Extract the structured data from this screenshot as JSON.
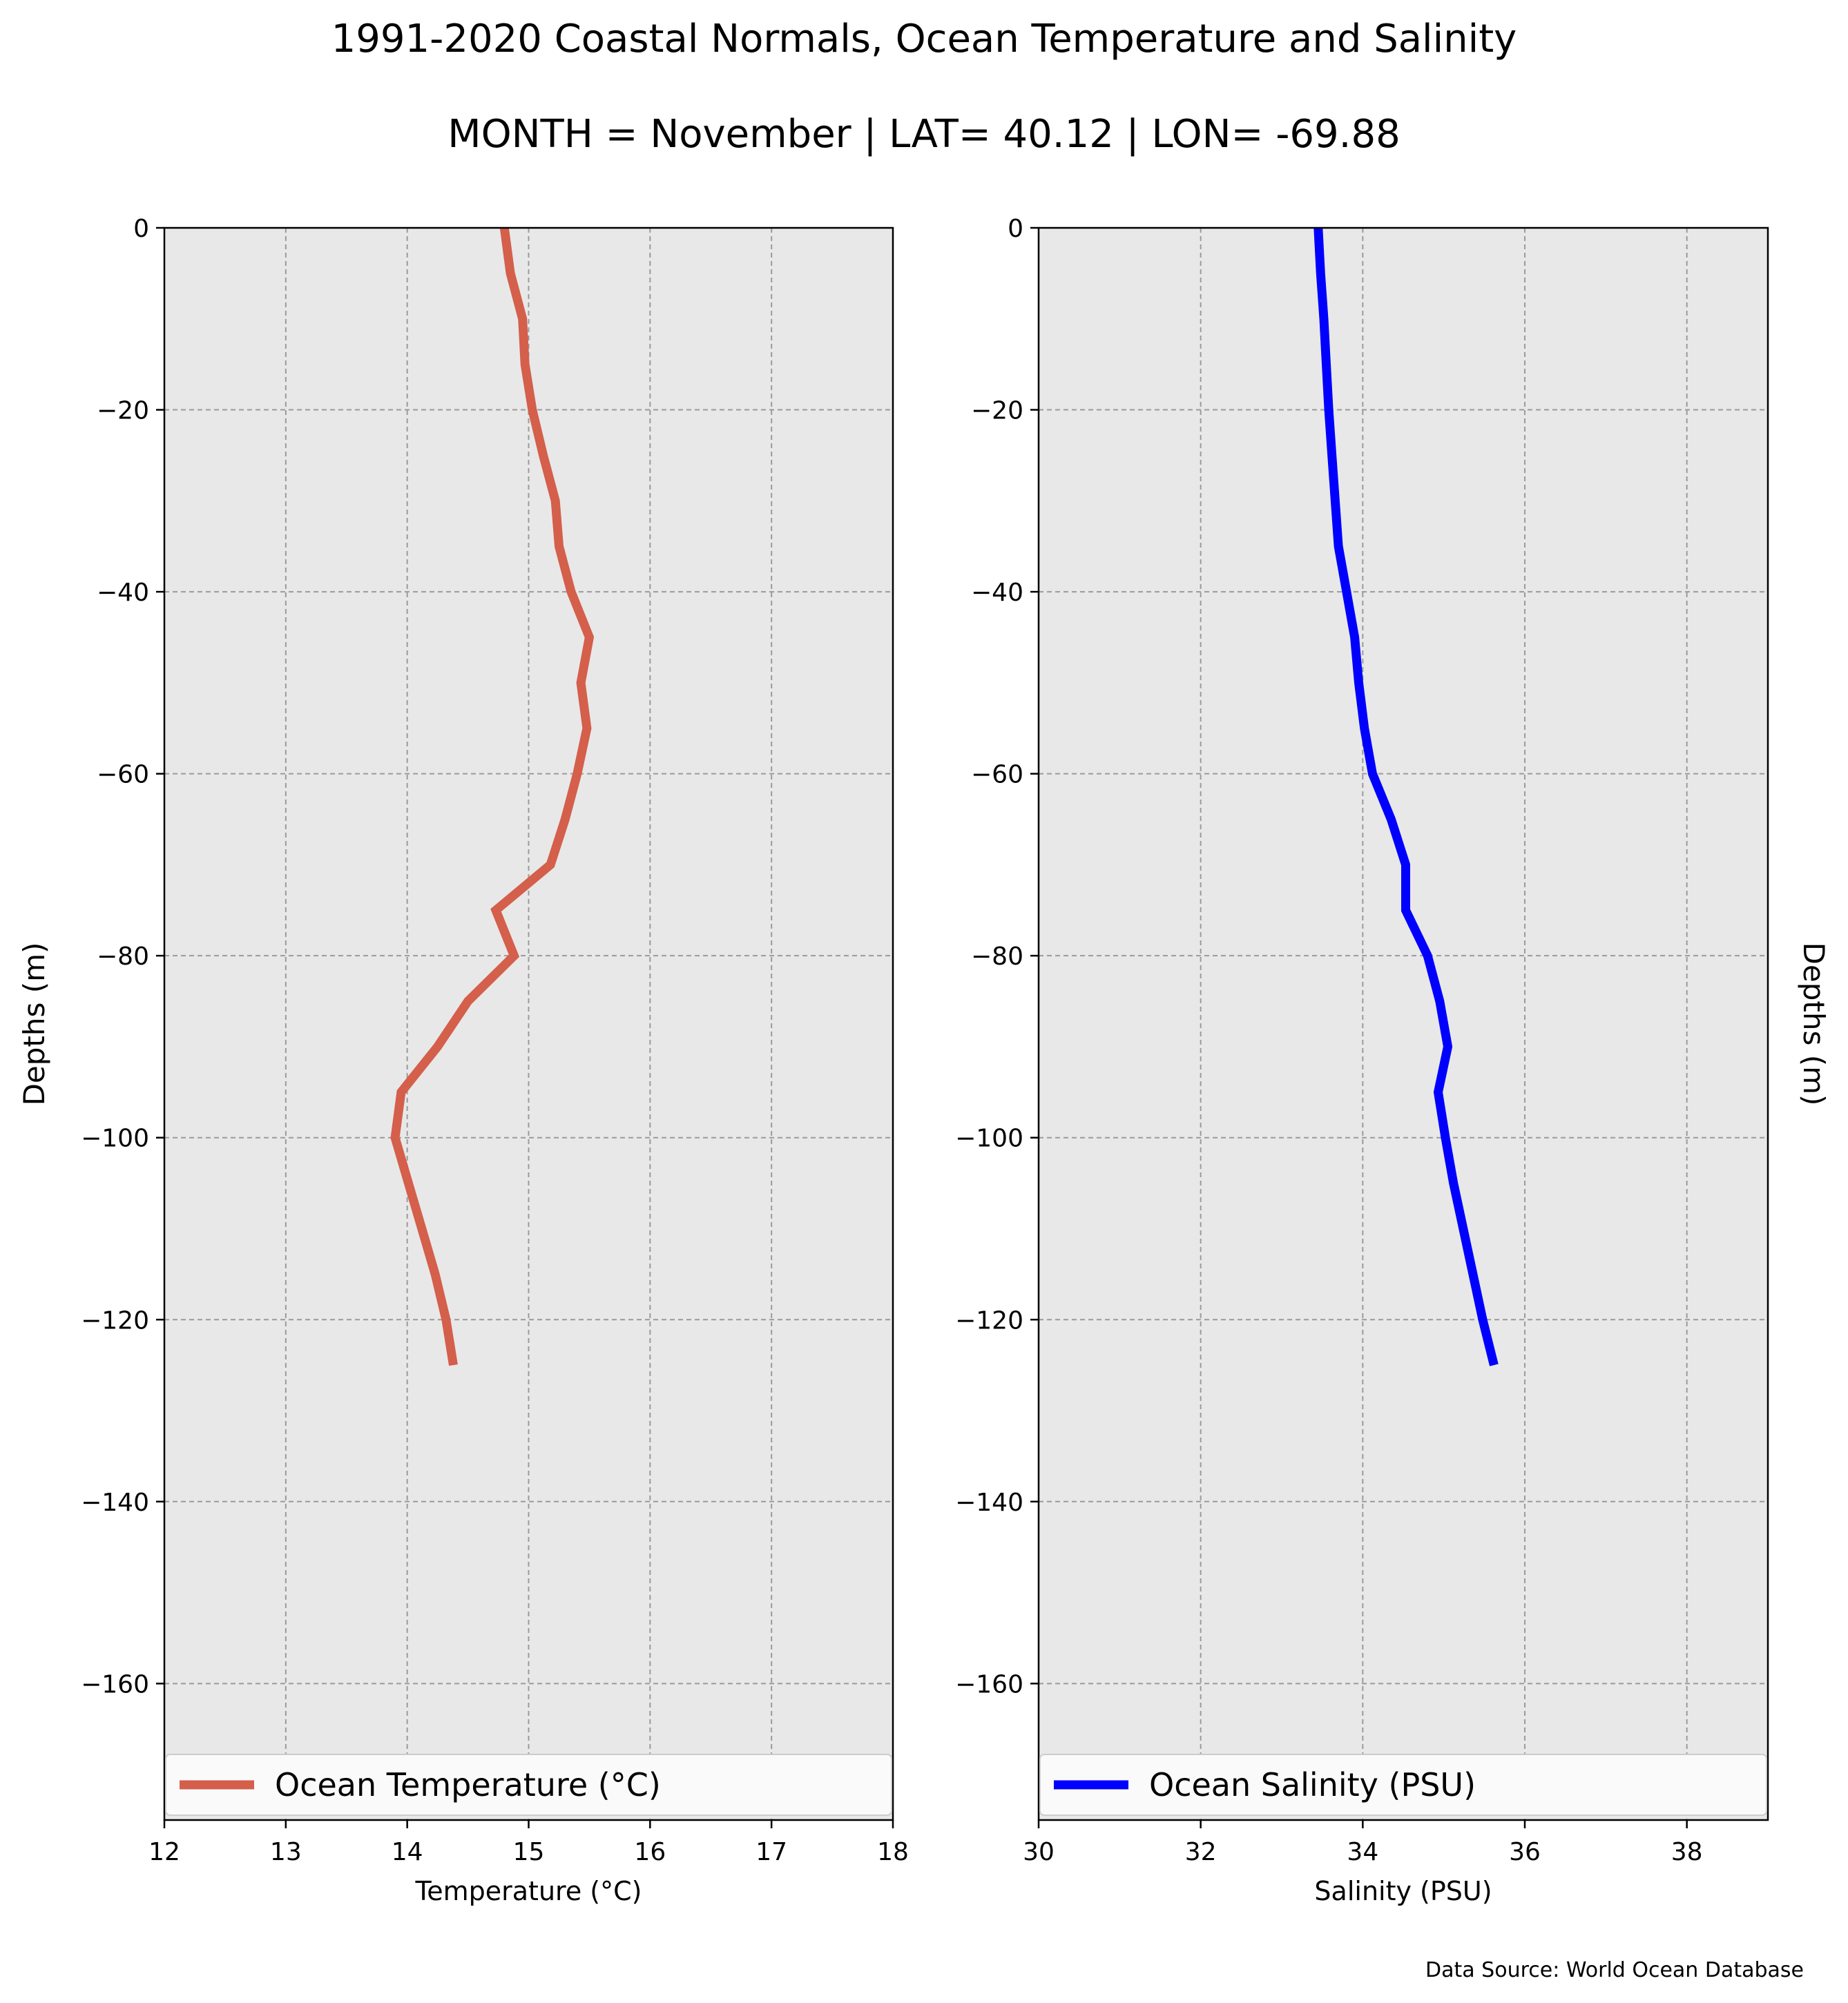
{
  "figure": {
    "title_line1": "1991-2020 Coastal Normals, Ocean Temperature and Salinity",
    "title_line2": "MONTH = November | LAT= 40.12 | LON= -69.88",
    "source": "Data Source: World Ocean Database"
  },
  "chart_data": [
    {
      "type": "line",
      "name": "temperature-profile",
      "xlabel": "Temperature (°C)",
      "ylabel": "Depths (m)",
      "ylabel_side": "left",
      "xlim": [
        12,
        18
      ],
      "ylim": [
        -175,
        0
      ],
      "xticks": [
        12,
        13,
        14,
        15,
        16,
        17,
        18
      ],
      "yticks": [
        0,
        -20,
        -40,
        -60,
        -80,
        -100,
        -120,
        -140,
        -160
      ],
      "grid": true,
      "background": "#e8e8e8",
      "legend": {
        "position": "bottom",
        "label": "Ocean Temperature (°C)"
      },
      "series": [
        {
          "name": "Ocean Temperature (°C)",
          "color": "#d45f4b",
          "points": [
            {
              "x": 14.8,
              "y": 0
            },
            {
              "x": 14.85,
              "y": -5
            },
            {
              "x": 14.95,
              "y": -10
            },
            {
              "x": 14.97,
              "y": -15
            },
            {
              "x": 15.03,
              "y": -20
            },
            {
              "x": 15.12,
              "y": -25
            },
            {
              "x": 15.22,
              "y": -30
            },
            {
              "x": 15.25,
              "y": -35
            },
            {
              "x": 15.35,
              "y": -40
            },
            {
              "x": 15.5,
              "y": -45
            },
            {
              "x": 15.43,
              "y": -50
            },
            {
              "x": 15.48,
              "y": -55
            },
            {
              "x": 15.4,
              "y": -60
            },
            {
              "x": 15.3,
              "y": -65
            },
            {
              "x": 15.18,
              "y": -70
            },
            {
              "x": 14.73,
              "y": -75
            },
            {
              "x": 14.88,
              "y": -80
            },
            {
              "x": 14.5,
              "y": -85
            },
            {
              "x": 14.25,
              "y": -90
            },
            {
              "x": 13.95,
              "y": -95
            },
            {
              "x": 13.9,
              "y": -100
            },
            {
              "x": 14.01,
              "y": -105
            },
            {
              "x": 14.12,
              "y": -110
            },
            {
              "x": 14.23,
              "y": -115
            },
            {
              "x": 14.32,
              "y": -120
            },
            {
              "x": 14.38,
              "y": -125
            }
          ]
        }
      ]
    },
    {
      "type": "line",
      "name": "salinity-profile",
      "xlabel": "Salinity (PSU)",
      "ylabel": "Depths (m)",
      "ylabel_side": "right",
      "xlim": [
        30,
        39
      ],
      "ylim": [
        -175,
        0
      ],
      "xticks": [
        30,
        32,
        34,
        36,
        38
      ],
      "yticks": [
        0,
        -20,
        -40,
        -60,
        -80,
        -100,
        -120,
        -140,
        -160
      ],
      "grid": true,
      "background": "#e8e8e8",
      "legend": {
        "position": "bottom",
        "label": "Ocean Salinity (PSU)"
      },
      "series": [
        {
          "name": "Ocean Salinity (PSU)",
          "color": "#0000ff",
          "points": [
            {
              "x": 33.45,
              "y": 0
            },
            {
              "x": 33.48,
              "y": -5
            },
            {
              "x": 33.52,
              "y": -10
            },
            {
              "x": 33.55,
              "y": -15
            },
            {
              "x": 33.58,
              "y": -20
            },
            {
              "x": 33.62,
              "y": -25
            },
            {
              "x": 33.66,
              "y": -30
            },
            {
              "x": 33.7,
              "y": -35
            },
            {
              "x": 33.8,
              "y": -40
            },
            {
              "x": 33.9,
              "y": -45
            },
            {
              "x": 33.95,
              "y": -50
            },
            {
              "x": 34.02,
              "y": -55
            },
            {
              "x": 34.12,
              "y": -60
            },
            {
              "x": 34.35,
              "y": -65
            },
            {
              "x": 34.53,
              "y": -70
            },
            {
              "x": 34.53,
              "y": -75
            },
            {
              "x": 34.8,
              "y": -80
            },
            {
              "x": 34.95,
              "y": -85
            },
            {
              "x": 35.05,
              "y": -90
            },
            {
              "x": 34.93,
              "y": -95
            },
            {
              "x": 35.02,
              "y": -100
            },
            {
              "x": 35.12,
              "y": -105
            },
            {
              "x": 35.24,
              "y": -110
            },
            {
              "x": 35.36,
              "y": -115
            },
            {
              "x": 35.48,
              "y": -120
            },
            {
              "x": 35.62,
              "y": -125
            }
          ]
        }
      ]
    }
  ]
}
